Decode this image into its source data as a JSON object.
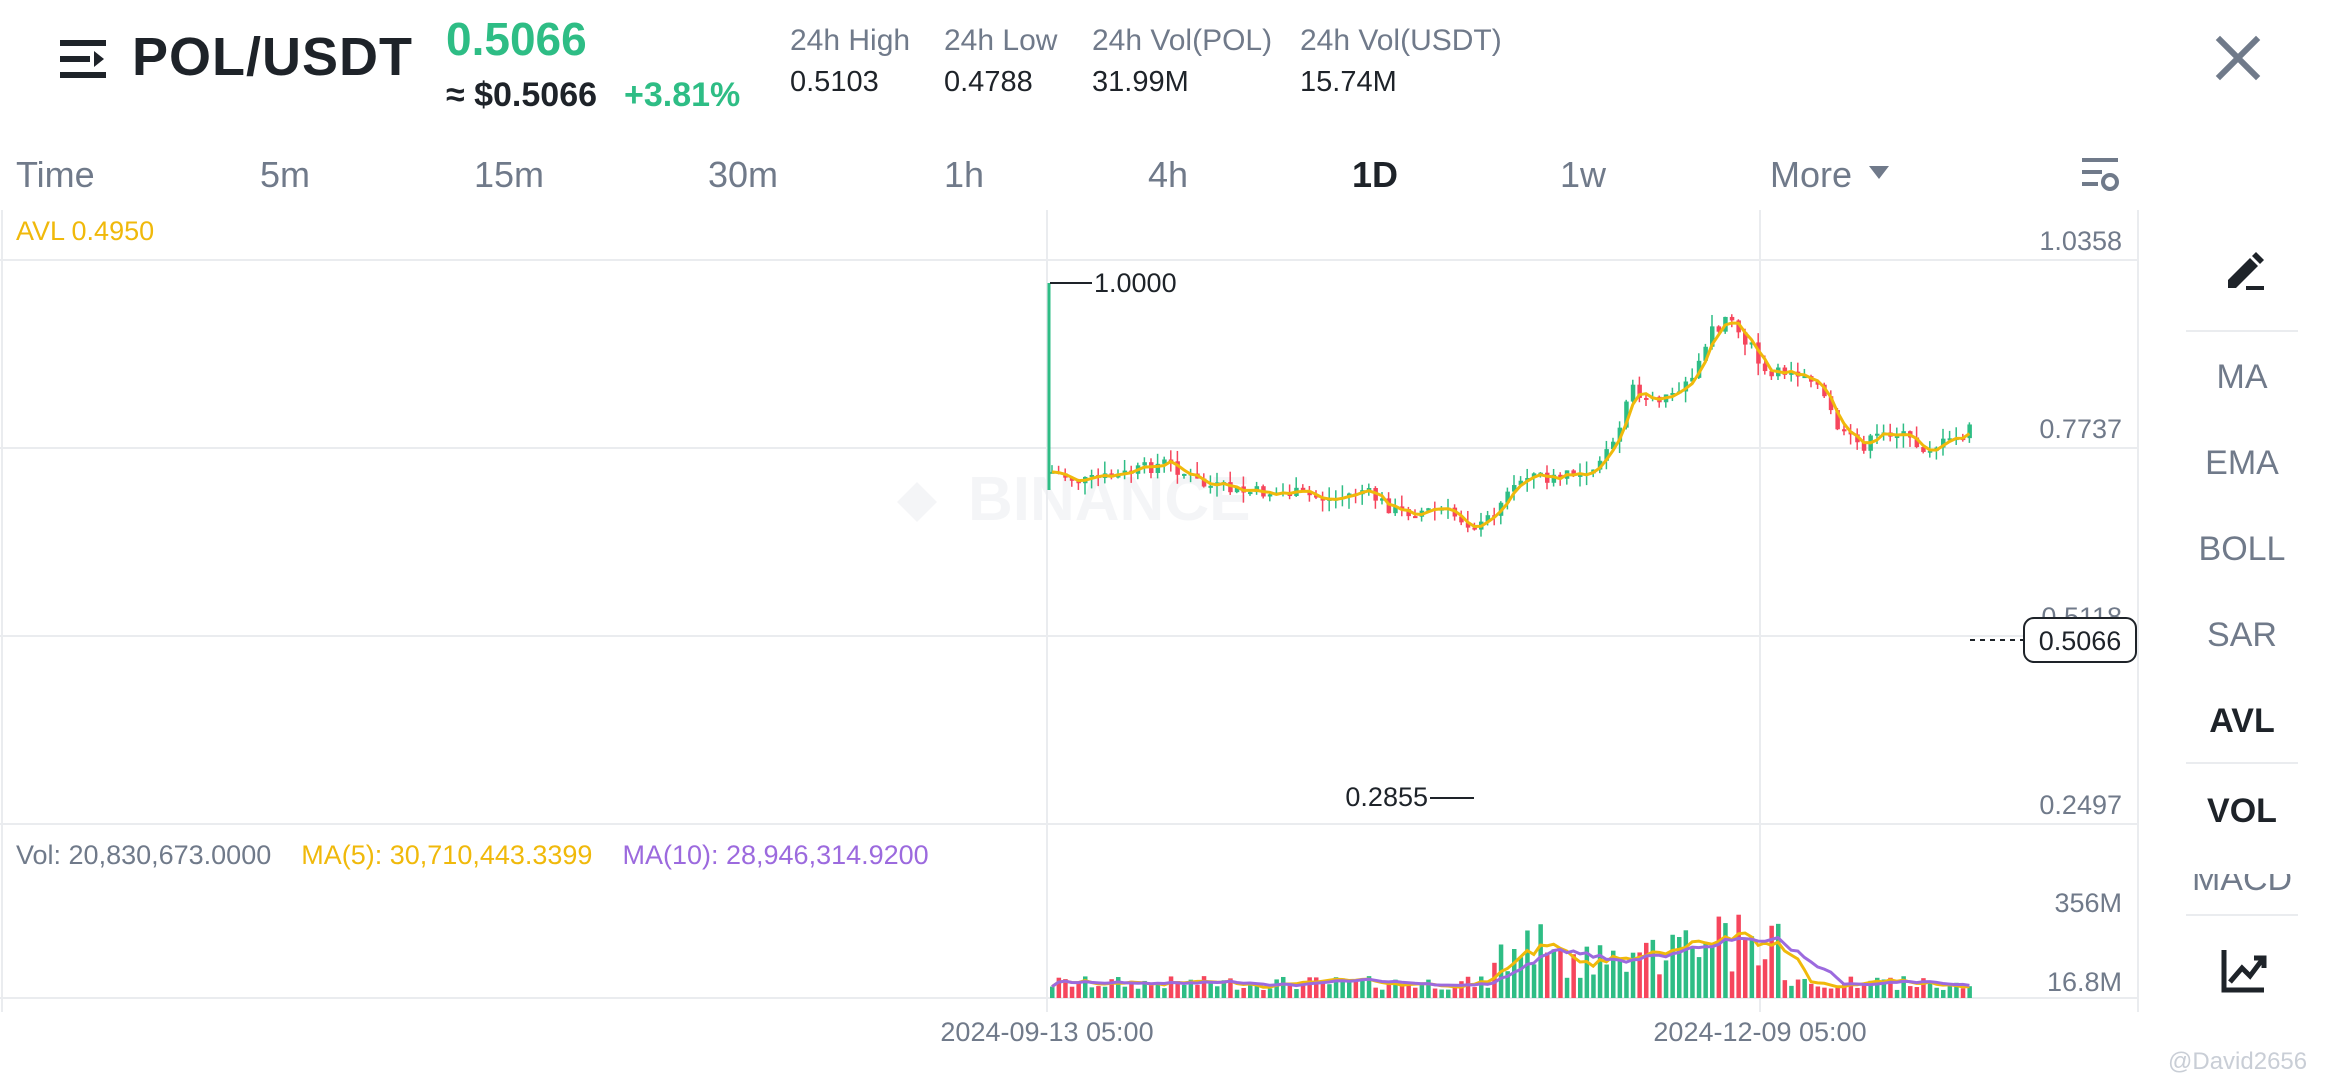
{
  "header": {
    "pair": "POL/USDT",
    "last_price": "0.5066",
    "approx_usd": "≈ $0.5066",
    "change_pct": "+3.81%",
    "stats": [
      {
        "label": "24h High",
        "value": "0.5103"
      },
      {
        "label": "24h Low",
        "value": "0.4788"
      },
      {
        "label": "24h Vol(POL)",
        "value": "31.99M"
      },
      {
        "label": "24h Vol(USDT)",
        "value": "15.74M"
      }
    ],
    "menu_icon": "menu-icon",
    "close_icon": "close-icon"
  },
  "intervals": {
    "items": [
      "Time",
      "5m",
      "15m",
      "30m",
      "1h",
      "4h",
      "1D",
      "1w",
      "More"
    ],
    "active": "1D",
    "settings_icon": "chart-settings-icon"
  },
  "chart": {
    "avl_label": "AVL 0.4950",
    "watermark": "BINANCE",
    "price_axis": [
      "1.0358",
      "0.7737",
      "0.5118",
      "0.2497"
    ],
    "current_price_tag": "0.5066",
    "high_marker": "1.0000",
    "low_marker": "0.2855",
    "volume_axis": [
      "356M",
      "16.8M"
    ],
    "volume_stats": {
      "vol": "Vol: 20,830,673.0000",
      "ma5": "MA(5): 30,710,443.3399",
      "ma10": "MA(10): 28,946,314.9200"
    },
    "time_axis": [
      "2024-09-13 05:00",
      "2024-12-09 05:00"
    ],
    "colors": {
      "up": "#2ebd85",
      "down": "#f6465d",
      "ma_yellow": "#f0b90b",
      "ma_purple": "#9c6ade"
    }
  },
  "toolbar": {
    "draw_icon": "draw-pen-icon",
    "indicators": [
      "MA",
      "EMA",
      "BOLL",
      "SAR",
      "AVL",
      "VOL",
      "MACD"
    ],
    "selected": [
      "AVL",
      "VOL"
    ],
    "fullscreen_icon": "full-chart-icon"
  },
  "watermark_user": "@David2656"
}
